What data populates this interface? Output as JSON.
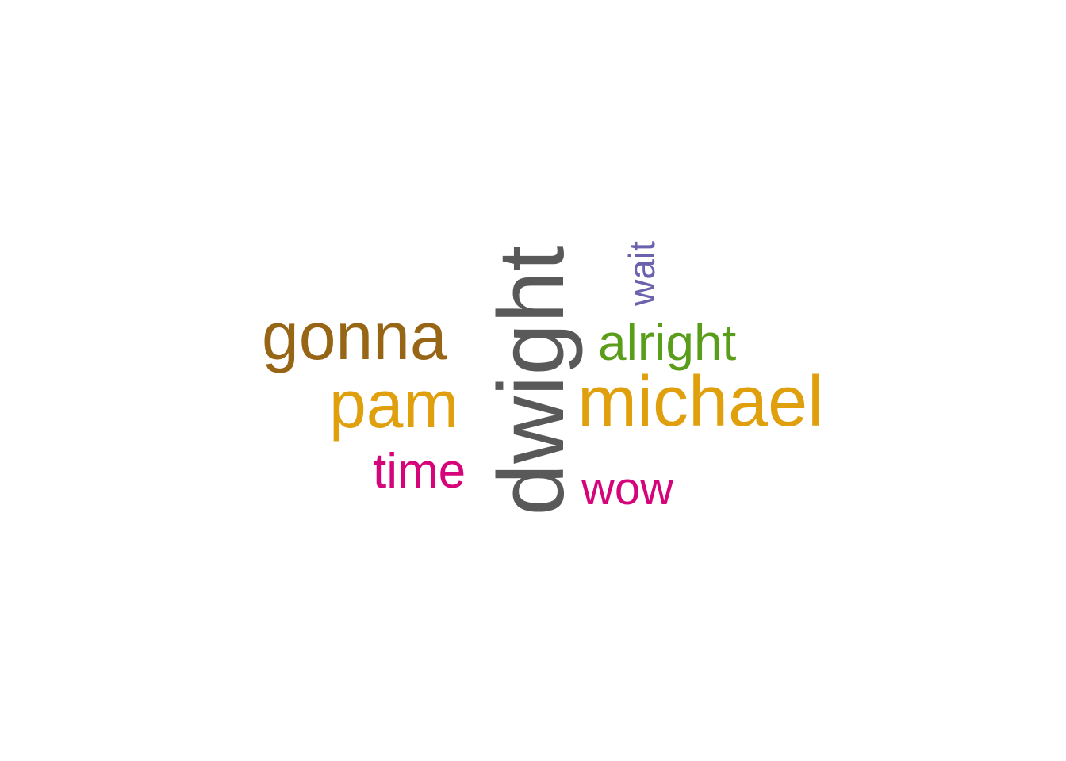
{
  "words": {
    "dwight": {
      "text": "dwight",
      "color": "#595959"
    },
    "gonna": {
      "text": "gonna",
      "color": "#966616"
    },
    "pam": {
      "text": "pam",
      "color": "#E0A00E"
    },
    "michael": {
      "text": "michael",
      "color": "#E0A00E"
    },
    "alright": {
      "text": "alright",
      "color": "#5A9D1B"
    },
    "time": {
      "text": "time",
      "color": "#D6047A"
    },
    "wow": {
      "text": "wow",
      "color": "#D6047A"
    },
    "wait": {
      "text": "wait",
      "color": "#6A62AD"
    }
  }
}
